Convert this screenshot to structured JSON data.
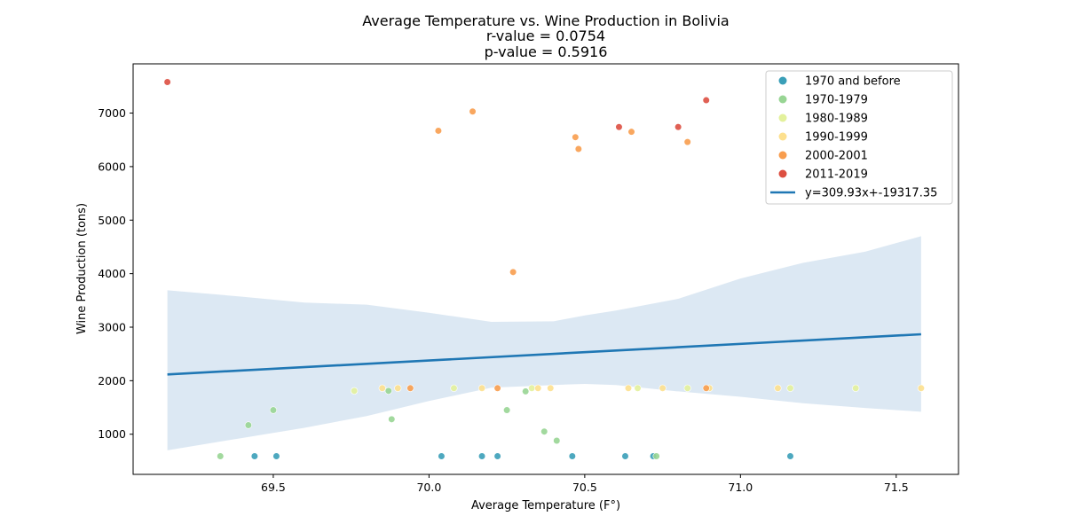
{
  "chart_data": {
    "type": "scatter",
    "title_lines": [
      "Average Temperature vs. Wine Production in Bolivia",
      "r-value = 0.0754",
      "p-value = 0.5916"
    ],
    "xlabel": "Average Temperature (F°)",
    "ylabel": "Wine Production (tons)",
    "xlim": [
      69.05,
      71.7
    ],
    "ylim": [
      250,
      7920
    ],
    "xticks": [
      69.5,
      70.0,
      70.5,
      71.0,
      71.5
    ],
    "xtick_labels": [
      "69.5",
      "70.0",
      "70.5",
      "71.0",
      "71.5"
    ],
    "yticks": [
      1000,
      2000,
      3000,
      4000,
      5000,
      6000,
      7000
    ],
    "ytick_labels": [
      "1000",
      "2000",
      "3000",
      "4000",
      "5000",
      "6000",
      "7000"
    ],
    "grid": false,
    "legend_position": "top-right",
    "series": [
      {
        "name": "1970 and before",
        "color": "#3a9fb8",
        "points": [
          [
            69.44,
            590
          ],
          [
            69.51,
            590
          ],
          [
            70.04,
            590
          ],
          [
            70.17,
            590
          ],
          [
            70.22,
            590
          ],
          [
            70.46,
            590
          ],
          [
            70.63,
            590
          ],
          [
            70.72,
            590
          ],
          [
            71.16,
            590
          ]
        ]
      },
      {
        "name": "1970-1979",
        "color": "#98d594",
        "points": [
          [
            69.33,
            590
          ],
          [
            69.42,
            1170
          ],
          [
            69.5,
            1450
          ],
          [
            69.87,
            1810
          ],
          [
            69.88,
            1280
          ],
          [
            70.25,
            1450
          ],
          [
            70.31,
            1800
          ],
          [
            70.37,
            1050
          ],
          [
            70.41,
            880
          ],
          [
            70.73,
            590
          ]
        ]
      },
      {
        "name": "1980-1989",
        "color": "#e3f19c",
        "points": [
          [
            69.76,
            1810
          ],
          [
            70.08,
            1860
          ],
          [
            70.33,
            1860
          ],
          [
            70.67,
            1860
          ],
          [
            70.83,
            1860
          ],
          [
            71.16,
            1860
          ],
          [
            71.37,
            1860
          ]
        ]
      },
      {
        "name": "1990-1999",
        "color": "#fde08e",
        "points": [
          [
            69.85,
            1860
          ],
          [
            69.9,
            1860
          ],
          [
            70.17,
            1860
          ],
          [
            70.35,
            1860
          ],
          [
            70.39,
            1860
          ],
          [
            70.64,
            1860
          ],
          [
            70.75,
            1860
          ],
          [
            70.9,
            1860
          ],
          [
            71.12,
            1860
          ],
          [
            71.58,
            1860
          ]
        ]
      },
      {
        "name": "2000-2001",
        "color": "#f89d4e",
        "points": [
          [
            69.94,
            1860
          ],
          [
            70.03,
            6670
          ],
          [
            70.14,
            7030
          ],
          [
            70.22,
            1860
          ],
          [
            70.27,
            4030
          ],
          [
            70.47,
            6550
          ],
          [
            70.48,
            6330
          ],
          [
            70.65,
            6650
          ],
          [
            70.83,
            6460
          ],
          [
            70.89,
            1860
          ]
        ]
      },
      {
        "name": "2011-2019",
        "color": "#dd4f41",
        "points": [
          [
            69.16,
            7580
          ],
          [
            70.61,
            6740
          ],
          [
            70.8,
            6740
          ],
          [
            70.89,
            7240
          ]
        ]
      }
    ],
    "regression": {
      "label": "y=309.93x+-19317.35",
      "color": "#1f77b4",
      "slope": 309.93,
      "intercept": -19317.35,
      "x_range": [
        69.16,
        71.58
      ],
      "band_color": "#c4d9eb",
      "ci_upper": [
        [
          69.16,
          3690
        ],
        [
          69.4,
          3570
        ],
        [
          69.6,
          3460
        ],
        [
          69.8,
          3420
        ],
        [
          70.0,
          3270
        ],
        [
          70.2,
          3100
        ],
        [
          70.4,
          3110
        ],
        [
          70.5,
          3220
        ],
        [
          70.6,
          3310
        ],
        [
          70.8,
          3530
        ],
        [
          71.0,
          3910
        ],
        [
          71.2,
          4200
        ],
        [
          71.4,
          4410
        ],
        [
          71.58,
          4700
        ]
      ],
      "ci_lower": [
        [
          69.16,
          700
        ],
        [
          69.4,
          930
        ],
        [
          69.6,
          1120
        ],
        [
          69.8,
          1340
        ],
        [
          70.0,
          1620
        ],
        [
          70.2,
          1870
        ],
        [
          70.4,
          1920
        ],
        [
          70.5,
          1940
        ],
        [
          70.6,
          1920
        ],
        [
          70.8,
          1800
        ],
        [
          71.0,
          1700
        ],
        [
          71.2,
          1580
        ],
        [
          71.4,
          1490
        ],
        [
          71.58,
          1420
        ]
      ]
    }
  }
}
